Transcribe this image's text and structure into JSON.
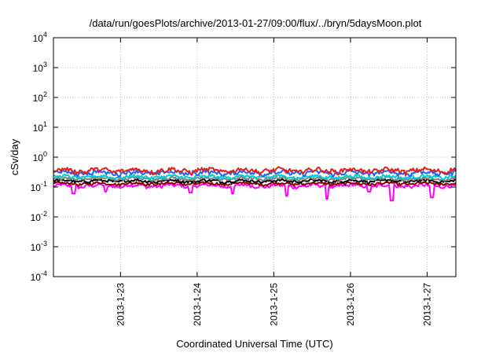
{
  "chart_data": {
    "type": "line",
    "title": "/data/run/goesPlots/archive/2013-01-27/09:00/flux/../bryn/5daysMoon.plot",
    "xlabel": "Coordinated Universal Time (UTC)",
    "ylabel": "cSv/day",
    "y_scale": "log",
    "ylim": [
      0.0001,
      10000
    ],
    "xlim": [
      "2013-01-22 03:00",
      "2013-01-27 09:00"
    ],
    "grid": true,
    "x_ticks": [
      "2013-1-23",
      "2013-1-24",
      "2013-1-25",
      "2013-1-26",
      "2013-1-27"
    ],
    "y_ticks": [
      {
        "base": "10",
        "exp": "4"
      },
      {
        "base": "10",
        "exp": "3"
      },
      {
        "base": "10",
        "exp": "2"
      },
      {
        "base": "10",
        "exp": "1"
      },
      {
        "base": "10",
        "exp": "0"
      },
      {
        "base": "10",
        "exp": "-1"
      },
      {
        "base": "10",
        "exp": "-2"
      },
      {
        "base": "10",
        "exp": "-3"
      },
      {
        "base": "10",
        "exp": "-4"
      }
    ],
    "series": [
      {
        "color": "#ff00ff",
        "level": 0.11,
        "spread": 0.15,
        "dips": [
          [
            0.05,
            0.06
          ],
          [
            0.13,
            0.07
          ],
          [
            0.34,
            0.065
          ],
          [
            0.58,
            0.05
          ],
          [
            0.68,
            0.04
          ],
          [
            0.84,
            0.035
          ],
          [
            0.94,
            0.045
          ],
          [
            0.445,
            0.06
          ],
          [
            0.785,
            0.07
          ]
        ]
      },
      {
        "color": "#8b0000",
        "level": 0.13,
        "spread": 0.12,
        "dips": []
      },
      {
        "color": "#000000",
        "level": 0.16,
        "spread": 0.12,
        "dips": []
      },
      {
        "color": "#808080",
        "level": 0.19,
        "spread": 0.12,
        "dips": []
      },
      {
        "color": "#00cccc",
        "level": 0.22,
        "spread": 0.14,
        "dips": []
      },
      {
        "color": "#1e64ff",
        "level": 0.3,
        "spread": 0.18,
        "dips": []
      },
      {
        "color": "#e02020",
        "level": 0.36,
        "spread": 0.2,
        "dips": []
      }
    ]
  }
}
